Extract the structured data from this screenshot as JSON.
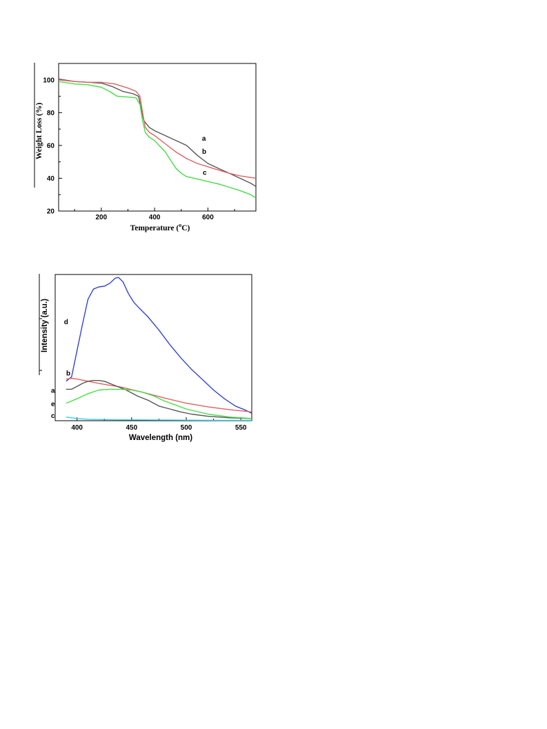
{
  "chart_data": [
    {
      "type": "line",
      "xlabel": "Temperature (oC)",
      "xlabel_main": "Temperature (",
      "xlabel_sup": "o",
      "xlabel_end": "C)",
      "ylabel": "Weight Loss (%)",
      "xlim": [
        40,
        780
      ],
      "ylim": [
        20,
        110
      ],
      "xticks": [
        200,
        400,
        600
      ],
      "yticks": [
        20,
        40,
        60,
        80,
        100
      ],
      "grid": false,
      "series": [
        {
          "name": "a",
          "color": "#555555",
          "x": [
            40,
            100,
            150,
            200,
            240,
            280,
            320,
            340,
            350,
            360,
            380,
            400,
            440,
            480,
            520,
            560,
            600,
            640,
            680,
            720,
            760,
            780
          ],
          "y": [
            100.5,
            99,
            98.5,
            98,
            96,
            93,
            91.5,
            90,
            82,
            75,
            71,
            69,
            66,
            63,
            60,
            54,
            49,
            46,
            43,
            40,
            37,
            35
          ]
        },
        {
          "name": "b",
          "color": "#e06060",
          "x": [
            40,
            100,
            150,
            200,
            250,
            300,
            330,
            345,
            355,
            365,
            380,
            400,
            440,
            480,
            520,
            560,
            600,
            640,
            680,
            720,
            760,
            780
          ],
          "y": [
            100,
            99,
            98.5,
            98.5,
            97.5,
            95,
            93,
            90,
            80,
            71,
            68,
            66,
            61,
            56,
            52,
            49,
            47,
            45,
            43,
            41.5,
            40.5,
            40
          ]
        },
        {
          "name": "c",
          "color": "#44dd44",
          "x": [
            40,
            100,
            150,
            200,
            230,
            260,
            300,
            330,
            345,
            355,
            365,
            380,
            400,
            440,
            480,
            500,
            520,
            560,
            600,
            640,
            680,
            720,
            760,
            780
          ],
          "y": [
            99,
            97.5,
            97,
            95.5,
            93,
            90,
            89.5,
            89,
            85,
            75,
            68,
            65,
            63,
            56,
            46,
            43,
            41,
            39.5,
            38,
            36.5,
            34.5,
            32.5,
            30,
            28
          ]
        }
      ],
      "annotations": [
        {
          "text": "a",
          "x": 585,
          "y": 63
        },
        {
          "text": "b",
          "x": 586,
          "y": 55
        },
        {
          "text": "c",
          "x": 588,
          "y": 42
        }
      ]
    },
    {
      "type": "line",
      "xlabel": "Wavelength (nm)",
      "ylabel": "Intensity (a.u.)",
      "xlim": [
        380,
        560
      ],
      "ylim": [
        0,
        100
      ],
      "xticks": [
        400,
        450,
        500,
        550
      ],
      "grid": false,
      "series": [
        {
          "name": "d",
          "color": "#3344cc",
          "x": [
            390,
            395,
            400,
            405,
            410,
            415,
            420,
            425,
            430,
            435,
            438,
            442,
            447,
            452,
            457,
            465,
            475,
            485,
            495,
            505,
            515,
            525,
            535,
            545,
            555,
            560
          ],
          "y": [
            27,
            30,
            48,
            66,
            83,
            90,
            91.5,
            92,
            94,
            97.5,
            98,
            95,
            87,
            81,
            77,
            71,
            62,
            52,
            43,
            35,
            28,
            21,
            15,
            10,
            7,
            5
          ]
        },
        {
          "name": "b",
          "color": "#e06060",
          "x": [
            390,
            395,
            400,
            410,
            420,
            440,
            460,
            480,
            500,
            520,
            540,
            560
          ],
          "y": [
            28.5,
            29,
            28.5,
            27,
            25.5,
            23,
            19.5,
            15.5,
            12,
            9.5,
            7.5,
            6
          ]
        },
        {
          "name": "a",
          "color": "#555555",
          "x": [
            390,
            395,
            400,
            405,
            410,
            415,
            420,
            425,
            435,
            445,
            455,
            465,
            475,
            485,
            495,
            505,
            520,
            540,
            560
          ],
          "y": [
            21.5,
            21.5,
            23.5,
            25.5,
            27,
            27.5,
            27.5,
            27,
            24,
            21,
            17,
            14,
            10,
            8,
            6,
            4.5,
            3,
            2,
            1.5
          ]
        },
        {
          "name": "e",
          "color": "#44dd44",
          "x": [
            390,
            395,
            400,
            410,
            420,
            430,
            440,
            450,
            460,
            470,
            480,
            500,
            520,
            540,
            560
          ],
          "y": [
            12,
            13.5,
            15,
            18.5,
            21,
            21.5,
            21.5,
            21,
            19.5,
            17,
            13.5,
            8,
            4.5,
            2.5,
            1.5
          ]
        },
        {
          "name": "c",
          "color": "#33ccee",
          "x": [
            390,
            395,
            400,
            410,
            420,
            440,
            470,
            500,
            530,
            560
          ],
          "y": [
            2.5,
            2,
            1.5,
            1,
            0.8,
            0.6,
            0.5,
            0.4,
            0.3,
            0.3
          ]
        }
      ],
      "annotations": [
        {
          "text": "d",
          "x": 390,
          "y": 66
        },
        {
          "text": "b",
          "x": 392,
          "y": 31
        },
        {
          "text": "a",
          "x": 378,
          "y": 19
        },
        {
          "text": "e",
          "x": 378,
          "y": 10
        },
        {
          "text": "c",
          "x": 378,
          "y": 2
        }
      ]
    }
  ]
}
